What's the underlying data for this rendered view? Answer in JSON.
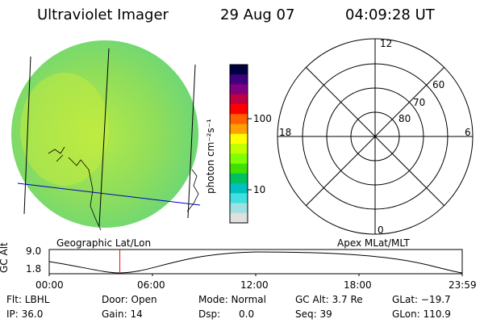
{
  "header": {
    "title": "Ultraviolet Imager",
    "date": "29 Aug 07",
    "time": "04:09:28 UT"
  },
  "colorbar": {
    "unit_label": "photon cm⁻²s⁻¹",
    "ticks": [
      "100",
      "10"
    ],
    "colors": [
      "#000040",
      "#400080",
      "#800080",
      "#c00040",
      "#ff0000",
      "#ff6000",
      "#ffa000",
      "#ffff00",
      "#c0ff00",
      "#80ff00",
      "#40e000",
      "#00c060",
      "#00c0c0",
      "#40e0e0",
      "#a0e0e0",
      "#e0e0e0"
    ]
  },
  "polar": {
    "mlt_labels": {
      "top": "12",
      "left": "18",
      "right": "6",
      "bottom": "0"
    },
    "lat_labels": [
      "60",
      "70",
      "80"
    ]
  },
  "track": {
    "left_label": "Geographic Lat/Lon",
    "right_label": "Apex MLat/MLT",
    "axis_title": "GC Alt",
    "y_top": "9.0",
    "y_bottom": "1.8",
    "x_ticks": [
      "00:00",
      "06:00",
      "12:00",
      "18:00",
      "23:59"
    ],
    "current_time_fraction": 0.171
  },
  "info": {
    "flt": "Flt: LBHL",
    "ip": "IP: 36.0",
    "door": "Door: Open",
    "gain": "Gain: 14",
    "mode": "Mode: Normal",
    "dsp": "Dsp:      0.0",
    "gcalt": "GC Alt: 3.7 Re",
    "seq": "Seq: 39",
    "glat": "GLat: −19.7",
    "glon": "GLon: 110.9"
  },
  "colors": {
    "disk_base": "#a6e34a",
    "track_marker": "#ff0000",
    "lon_line": "#0000c0"
  }
}
